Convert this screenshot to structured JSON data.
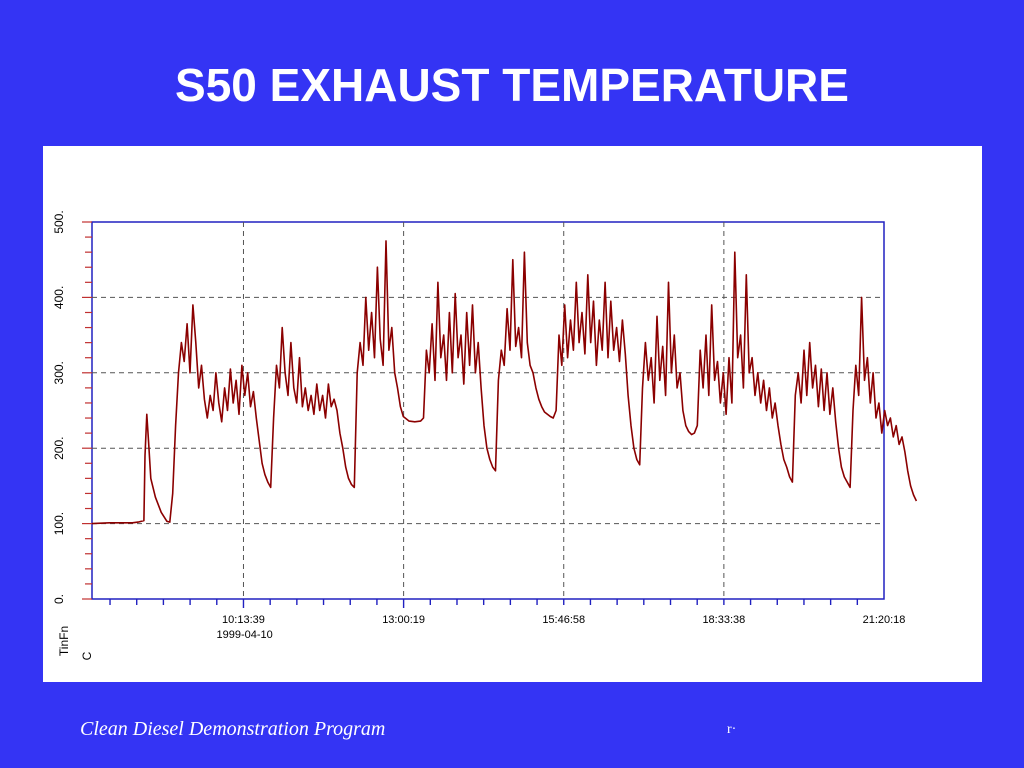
{
  "slide": {
    "title": "S50 EXHAUST TEMPERATURE",
    "footer_text": "Clean Diesel Demonstration Program",
    "footer_mark": "r·"
  },
  "colors": {
    "background": "#3434f4",
    "panel": "#ffffff",
    "axis": "#2020c0",
    "series": "#8b0000",
    "grid": "#555555"
  },
  "chart_data": {
    "type": "line",
    "title": "",
    "ylabel": "TinFn",
    "yunit": "C",
    "ylim": [
      0,
      500
    ],
    "yticks": [
      0,
      100,
      200,
      300,
      400,
      500
    ],
    "ytick_labels": [
      "0.",
      "100.",
      "200.",
      "300.",
      "400.",
      "500."
    ],
    "xlim_hours": [
      7.6,
      21.3383
    ],
    "xticks": [
      "10:13:39",
      "13:00:19",
      "15:46:58",
      "18:33:38",
      "21:20:18"
    ],
    "x_date_label": "1999-04-10",
    "grid": true,
    "series": [
      {
        "values": [
          [
            7.6,
            100
          ],
          [
            7.9,
            101
          ],
          [
            8.1,
            101
          ],
          [
            8.3,
            101
          ],
          [
            8.4,
            102
          ],
          [
            8.5,
            104
          ],
          [
            8.52,
            190
          ],
          [
            8.55,
            245
          ],
          [
            8.58,
            210
          ],
          [
            8.62,
            160
          ],
          [
            8.7,
            135
          ],
          [
            8.8,
            115
          ],
          [
            8.9,
            103
          ],
          [
            8.95,
            102
          ],
          [
            9.0,
            140
          ],
          [
            9.05,
            230
          ],
          [
            9.1,
            300
          ],
          [
            9.15,
            340
          ],
          [
            9.2,
            315
          ],
          [
            9.25,
            365
          ],
          [
            9.3,
            300
          ],
          [
            9.35,
            390
          ],
          [
            9.4,
            340
          ],
          [
            9.45,
            280
          ],
          [
            9.5,
            310
          ],
          [
            9.55,
            265
          ],
          [
            9.6,
            240
          ],
          [
            9.65,
            270
          ],
          [
            9.7,
            250
          ],
          [
            9.75,
            300
          ],
          [
            9.8,
            260
          ],
          [
            9.85,
            235
          ],
          [
            9.9,
            280
          ],
          [
            9.95,
            250
          ],
          [
            10.0,
            305
          ],
          [
            10.05,
            260
          ],
          [
            10.1,
            290
          ],
          [
            10.15,
            245
          ],
          [
            10.2,
            310
          ],
          [
            10.25,
            270
          ],
          [
            10.3,
            300
          ],
          [
            10.35,
            255
          ],
          [
            10.4,
            275
          ],
          [
            10.45,
            240
          ],
          [
            10.5,
            210
          ],
          [
            10.55,
            180
          ],
          [
            10.6,
            165
          ],
          [
            10.65,
            155
          ],
          [
            10.7,
            148
          ],
          [
            10.75,
            240
          ],
          [
            10.8,
            310
          ],
          [
            10.85,
            280
          ],
          [
            10.9,
            360
          ],
          [
            10.95,
            300
          ],
          [
            11.0,
            270
          ],
          [
            11.05,
            340
          ],
          [
            11.1,
            280
          ],
          [
            11.15,
            260
          ],
          [
            11.2,
            320
          ],
          [
            11.25,
            255
          ],
          [
            11.3,
            280
          ],
          [
            11.35,
            250
          ],
          [
            11.4,
            270
          ],
          [
            11.45,
            245
          ],
          [
            11.5,
            285
          ],
          [
            11.55,
            250
          ],
          [
            11.6,
            270
          ],
          [
            11.65,
            240
          ],
          [
            11.7,
            285
          ],
          [
            11.75,
            255
          ],
          [
            11.8,
            265
          ],
          [
            11.85,
            250
          ],
          [
            11.9,
            220
          ],
          [
            11.95,
            200
          ],
          [
            12.0,
            175
          ],
          [
            12.05,
            160
          ],
          [
            12.1,
            152
          ],
          [
            12.15,
            148
          ],
          [
            12.2,
            300
          ],
          [
            12.25,
            340
          ],
          [
            12.3,
            310
          ],
          [
            12.35,
            400
          ],
          [
            12.4,
            330
          ],
          [
            12.45,
            380
          ],
          [
            12.5,
            320
          ],
          [
            12.55,
            440
          ],
          [
            12.6,
            345
          ],
          [
            12.65,
            310
          ],
          [
            12.7,
            475
          ],
          [
            12.75,
            330
          ],
          [
            12.8,
            360
          ],
          [
            12.85,
            300
          ],
          [
            12.9,
            280
          ],
          [
            12.95,
            255
          ],
          [
            13.0,
            242
          ],
          [
            13.1,
            236
          ],
          [
            13.2,
            235
          ],
          [
            13.3,
            236
          ],
          [
            13.35,
            240
          ],
          [
            13.4,
            330
          ],
          [
            13.45,
            300
          ],
          [
            13.5,
            365
          ],
          [
            13.55,
            290
          ],
          [
            13.6,
            420
          ],
          [
            13.65,
            320
          ],
          [
            13.7,
            350
          ],
          [
            13.75,
            290
          ],
          [
            13.8,
            380
          ],
          [
            13.85,
            300
          ],
          [
            13.9,
            405
          ],
          [
            13.95,
            320
          ],
          [
            14.0,
            350
          ],
          [
            14.05,
            285
          ],
          [
            14.1,
            380
          ],
          [
            14.15,
            310
          ],
          [
            14.2,
            390
          ],
          [
            14.25,
            300
          ],
          [
            14.3,
            340
          ],
          [
            14.35,
            280
          ],
          [
            14.4,
            230
          ],
          [
            14.45,
            200
          ],
          [
            14.5,
            185
          ],
          [
            14.55,
            175
          ],
          [
            14.6,
            170
          ],
          [
            14.65,
            290
          ],
          [
            14.7,
            330
          ],
          [
            14.75,
            310
          ],
          [
            14.8,
            385
          ],
          [
            14.85,
            330
          ],
          [
            14.9,
            450
          ],
          [
            14.95,
            335
          ],
          [
            15.0,
            360
          ],
          [
            15.05,
            320
          ],
          [
            15.1,
            460
          ],
          [
            15.15,
            340
          ],
          [
            15.2,
            310
          ],
          [
            15.25,
            300
          ],
          [
            15.3,
            280
          ],
          [
            15.35,
            265
          ],
          [
            15.4,
            255
          ],
          [
            15.45,
            248
          ],
          [
            15.5,
            245
          ],
          [
            15.55,
            242
          ],
          [
            15.6,
            240
          ],
          [
            15.65,
            250
          ],
          [
            15.7,
            350
          ],
          [
            15.75,
            310
          ],
          [
            15.8,
            390
          ],
          [
            15.85,
            320
          ],
          [
            15.9,
            370
          ],
          [
            15.95,
            330
          ],
          [
            16.0,
            420
          ],
          [
            16.05,
            340
          ],
          [
            16.1,
            380
          ],
          [
            16.15,
            325
          ],
          [
            16.2,
            430
          ],
          [
            16.25,
            340
          ],
          [
            16.3,
            395
          ],
          [
            16.35,
            310
          ],
          [
            16.4,
            370
          ],
          [
            16.45,
            330
          ],
          [
            16.5,
            420
          ],
          [
            16.55,
            320
          ],
          [
            16.6,
            395
          ],
          [
            16.65,
            330
          ],
          [
            16.7,
            360
          ],
          [
            16.75,
            315
          ],
          [
            16.8,
            370
          ],
          [
            16.85,
            325
          ],
          [
            16.9,
            270
          ],
          [
            16.95,
            230
          ],
          [
            17.0,
            200
          ],
          [
            17.05,
            185
          ],
          [
            17.1,
            178
          ],
          [
            17.15,
            280
          ],
          [
            17.2,
            340
          ],
          [
            17.25,
            290
          ],
          [
            17.3,
            320
          ],
          [
            17.35,
            260
          ],
          [
            17.4,
            375
          ],
          [
            17.45,
            290
          ],
          [
            17.5,
            335
          ],
          [
            17.55,
            270
          ],
          [
            17.6,
            420
          ],
          [
            17.65,
            300
          ],
          [
            17.7,
            350
          ],
          [
            17.75,
            280
          ],
          [
            17.8,
            300
          ],
          [
            17.85,
            250
          ],
          [
            17.9,
            230
          ],
          [
            17.95,
            222
          ],
          [
            18.0,
            218
          ],
          [
            18.05,
            220
          ],
          [
            18.1,
            230
          ],
          [
            18.15,
            330
          ],
          [
            18.2,
            280
          ],
          [
            18.25,
            350
          ],
          [
            18.3,
            270
          ],
          [
            18.35,
            390
          ],
          [
            18.4,
            290
          ],
          [
            18.45,
            315
          ],
          [
            18.5,
            260
          ],
          [
            18.55,
            300
          ],
          [
            18.6,
            245
          ],
          [
            18.65,
            320
          ],
          [
            18.7,
            260
          ],
          [
            18.75,
            460
          ],
          [
            18.8,
            320
          ],
          [
            18.85,
            350
          ],
          [
            18.9,
            280
          ],
          [
            18.95,
            430
          ],
          [
            19.0,
            300
          ],
          [
            19.05,
            320
          ],
          [
            19.1,
            270
          ],
          [
            19.15,
            300
          ],
          [
            19.2,
            260
          ],
          [
            19.25,
            290
          ],
          [
            19.3,
            250
          ],
          [
            19.35,
            280
          ],
          [
            19.4,
            240
          ],
          [
            19.45,
            260
          ],
          [
            19.5,
            230
          ],
          [
            19.55,
            205
          ],
          [
            19.6,
            185
          ],
          [
            19.65,
            175
          ],
          [
            19.7,
            162
          ],
          [
            19.75,
            155
          ],
          [
            19.8,
            270
          ],
          [
            19.85,
            300
          ],
          [
            19.9,
            260
          ],
          [
            19.95,
            330
          ],
          [
            20.0,
            270
          ],
          [
            20.05,
            340
          ],
          [
            20.1,
            280
          ],
          [
            20.15,
            310
          ],
          [
            20.2,
            255
          ],
          [
            20.25,
            305
          ],
          [
            20.3,
            250
          ],
          [
            20.35,
            300
          ],
          [
            20.4,
            245
          ],
          [
            20.45,
            280
          ],
          [
            20.5,
            235
          ],
          [
            20.55,
            200
          ],
          [
            20.6,
            175
          ],
          [
            20.65,
            162
          ],
          [
            20.7,
            155
          ],
          [
            20.75,
            148
          ],
          [
            20.8,
            250
          ],
          [
            20.85,
            310
          ],
          [
            20.9,
            270
          ],
          [
            20.95,
            400
          ],
          [
            21.0,
            290
          ],
          [
            21.05,
            320
          ],
          [
            21.1,
            260
          ],
          [
            21.15,
            300
          ],
          [
            21.2,
            240
          ],
          [
            21.25,
            260
          ],
          [
            21.3,
            220
          ],
          [
            21.35,
            250
          ],
          [
            21.4,
            230
          ],
          [
            21.45,
            240
          ],
          [
            21.5,
            215
          ],
          [
            21.55,
            230
          ],
          [
            21.6,
            205
          ],
          [
            21.65,
            215
          ],
          [
            21.7,
            195
          ],
          [
            21.75,
            170
          ],
          [
            21.8,
            150
          ],
          [
            21.85,
            138
          ],
          [
            21.9,
            130
          ]
        ]
      }
    ]
  }
}
